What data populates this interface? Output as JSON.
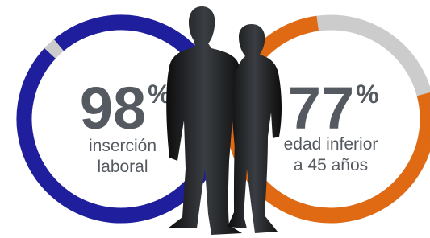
{
  "gauges": [
    {
      "value": 98,
      "unit": "%",
      "label_lines": [
        "inserción",
        "laboral"
      ],
      "color": "#1f1f9e",
      "track_color": "#cccccc"
    },
    {
      "value": 77,
      "unit": "%",
      "label_lines": [
        "edad inferior",
        "a 45 años"
      ],
      "color": "#e06a14",
      "track_color": "#cccccc"
    }
  ]
}
